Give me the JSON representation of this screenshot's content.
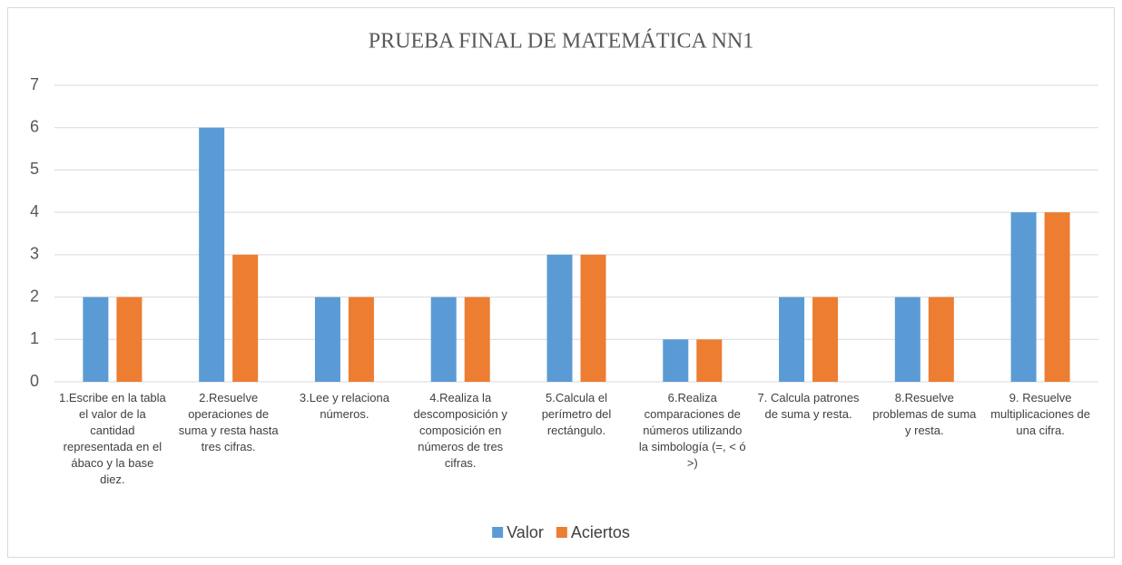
{
  "chart_data": {
    "type": "bar",
    "title": "PRUEBA FINAL DE MATEMÁTICA NN1",
    "categories": [
      "1.Escribe en la tabla el valor de la cantidad representada en el ábaco y la base diez.",
      "2.Resuelve operaciones de suma y resta hasta tres cifras.",
      "3.Lee y relaciona números.",
      "4.Realiza la descomposición y composición en números de tres cifras.",
      "5.Calcula el perímetro del rectángulo.",
      "6.Realiza comparaciones de números utilizando la simbología (=, < ó >)",
      "7. Calcula patrones de suma y resta.",
      "8.Resuelve problemas de suma y resta.",
      "9. Resuelve multiplicaciones de una cifra."
    ],
    "series": [
      {
        "name": "Valor",
        "color": "#5b9bd5",
        "values": [
          2,
          6,
          2,
          2,
          3,
          1,
          2,
          2,
          4
        ]
      },
      {
        "name": "Aciertos",
        "color": "#ed7d31",
        "values": [
          2,
          3,
          2,
          2,
          3,
          1,
          2,
          2,
          4
        ]
      }
    ],
    "ylim": [
      0,
      7
    ],
    "yticks": [
      0,
      1,
      2,
      3,
      4,
      5,
      6,
      7
    ],
    "grid": true,
    "legend": "bottom"
  }
}
